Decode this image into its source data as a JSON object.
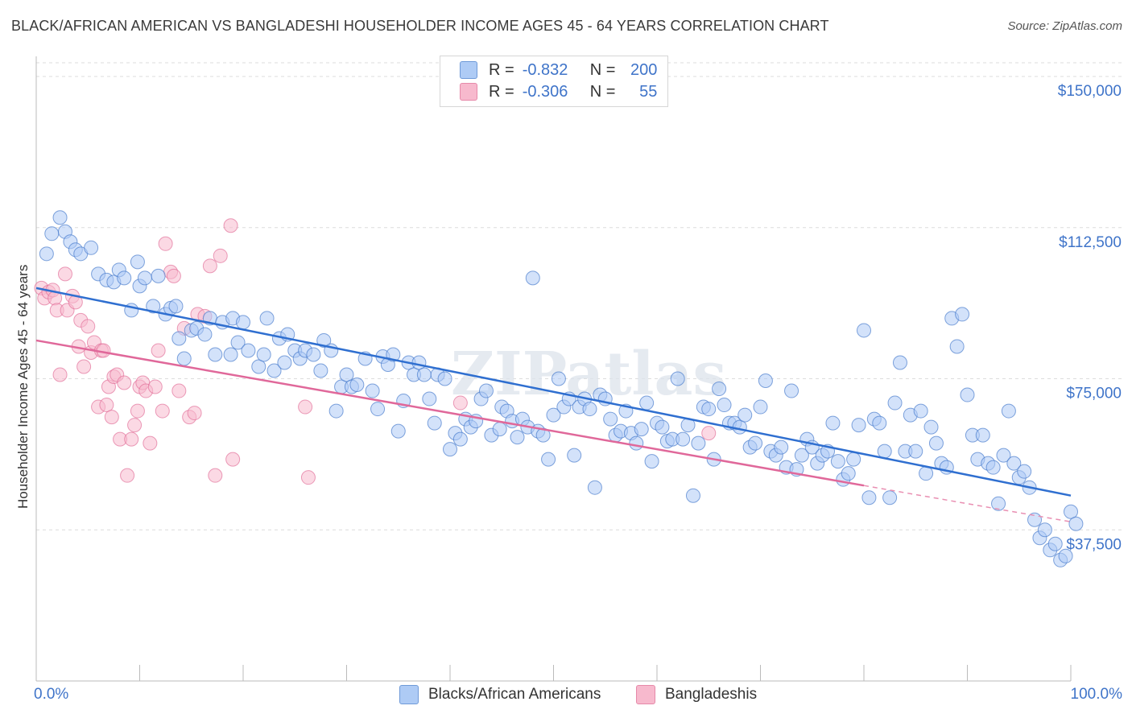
{
  "header": {
    "title": "BLACK/AFRICAN AMERICAN VS BANGLADESHI HOUSEHOLDER INCOME AGES 45 - 64 YEARS CORRELATION CHART",
    "source": "Source: ZipAtlas.com"
  },
  "watermark": "ZIPatlas",
  "legend": {
    "r_label": "R =",
    "n_label": "N =",
    "rows": [
      {
        "r": "-0.832",
        "n": "200",
        "color": "#aecbf5"
      },
      {
        "r": "-0.306",
        "n": "55",
        "color": "#f7b9cd"
      }
    ]
  },
  "bottom_legend": [
    {
      "label": "Blacks/African Americans",
      "color": "#aecbf5"
    },
    {
      "label": "Bangladeshis",
      "color": "#f7b9cd"
    }
  ],
  "chart_data": {
    "type": "scatter",
    "title": "BLACK/AFRICAN AMERICAN VS BANGLADESHI HOUSEHOLDER INCOME AGES 45 - 64 YEARS CORRELATION CHART",
    "xlabel": "",
    "ylabel": "Householder Income Ages 45 - 64 years",
    "xlim": [
      0,
      100
    ],
    "ylim": [
      0,
      155000
    ],
    "x_tick_labels": [
      "0.0%",
      "100.0%"
    ],
    "y_ticks": [
      37500,
      75000,
      112500,
      150000
    ],
    "y_tick_labels": [
      "$37,500",
      "$75,000",
      "$112,500",
      "$150,000"
    ],
    "grid": true,
    "legend_position": "top-center",
    "series": [
      {
        "name": "Blacks/African Americans",
        "color": "#3f74c9",
        "fill": "#aecbf5",
        "trend": {
          "x": [
            0,
            100
          ],
          "y": [
            97500,
            46000
          ],
          "style": "solid"
        },
        "points": [
          [
            1,
            106000
          ],
          [
            1.5,
            111000
          ],
          [
            2.3,
            115000
          ],
          [
            2.8,
            111500
          ],
          [
            3.3,
            109000
          ],
          [
            3.8,
            107000
          ],
          [
            4.3,
            106000
          ],
          [
            5.3,
            107500
          ],
          [
            6,
            101000
          ],
          [
            6.8,
            99500
          ],
          [
            7.5,
            99000
          ],
          [
            8,
            102000
          ],
          [
            8.5,
            100000
          ],
          [
            9.2,
            92000
          ],
          [
            9.8,
            104000
          ],
          [
            10,
            98000
          ],
          [
            10.5,
            100000
          ],
          [
            11.3,
            93000
          ],
          [
            11.8,
            100500
          ],
          [
            12.5,
            91000
          ],
          [
            13,
            92500
          ],
          [
            13.5,
            93000
          ],
          [
            13.8,
            85000
          ],
          [
            14.3,
            80000
          ],
          [
            15,
            87000
          ],
          [
            15.5,
            87500
          ],
          [
            16.3,
            86000
          ],
          [
            16.8,
            90000
          ],
          [
            17.3,
            81000
          ],
          [
            18,
            89000
          ],
          [
            18.8,
            81000
          ],
          [
            19,
            90000
          ],
          [
            19.5,
            84000
          ],
          [
            20,
            89000
          ],
          [
            20.5,
            82000
          ],
          [
            21.5,
            78000
          ],
          [
            22,
            81000
          ],
          [
            22.3,
            90000
          ],
          [
            23,
            77000
          ],
          [
            23.5,
            85000
          ],
          [
            24,
            79000
          ],
          [
            24.3,
            86000
          ],
          [
            25,
            82000
          ],
          [
            25.5,
            80000
          ],
          [
            26,
            82000
          ],
          [
            26.8,
            81000
          ],
          [
            27.5,
            77000
          ],
          [
            27.8,
            84500
          ],
          [
            28.5,
            82000
          ],
          [
            29,
            67000
          ],
          [
            29.5,
            73000
          ],
          [
            30,
            76000
          ],
          [
            30.5,
            73000
          ],
          [
            31,
            73500
          ],
          [
            31.8,
            80000
          ],
          [
            32.5,
            72000
          ],
          [
            33,
            67500
          ],
          [
            33.5,
            80500
          ],
          [
            34,
            78500
          ],
          [
            34.5,
            81000
          ],
          [
            35,
            62000
          ],
          [
            35.5,
            69500
          ],
          [
            36,
            79000
          ],
          [
            36.5,
            76000
          ],
          [
            37,
            79000
          ],
          [
            37.5,
            76000
          ],
          [
            38,
            70000
          ],
          [
            38.5,
            64000
          ],
          [
            38.8,
            76000
          ],
          [
            39.5,
            75000
          ],
          [
            40,
            57500
          ],
          [
            40.5,
            61500
          ],
          [
            41,
            60000
          ],
          [
            41.5,
            65000
          ],
          [
            42,
            63000
          ],
          [
            42.5,
            64500
          ],
          [
            43,
            70000
          ],
          [
            43.5,
            72000
          ],
          [
            44,
            61000
          ],
          [
            44.8,
            62500
          ],
          [
            45,
            68000
          ],
          [
            45.5,
            67000
          ],
          [
            46,
            64500
          ],
          [
            46.5,
            60500
          ],
          [
            47,
            65000
          ],
          [
            47.5,
            63000
          ],
          [
            48,
            100000
          ],
          [
            48.5,
            62000
          ],
          [
            49,
            61000
          ],
          [
            49.5,
            55000
          ],
          [
            50,
            66000
          ],
          [
            50.5,
            75000
          ],
          [
            51,
            68000
          ],
          [
            51.5,
            70000
          ],
          [
            52,
            56000
          ],
          [
            52.5,
            68000
          ],
          [
            53,
            70000
          ],
          [
            53.5,
            67500
          ],
          [
            54,
            48000
          ],
          [
            54.5,
            71000
          ],
          [
            55,
            70000
          ],
          [
            55.5,
            65000
          ],
          [
            56,
            61000
          ],
          [
            56.5,
            62000
          ],
          [
            57,
            67000
          ],
          [
            57.5,
            61500
          ],
          [
            58,
            59000
          ],
          [
            58.5,
            62500
          ],
          [
            59,
            69000
          ],
          [
            59.5,
            54500
          ],
          [
            60,
            64000
          ],
          [
            60.5,
            63000
          ],
          [
            61,
            59500
          ],
          [
            61.5,
            60000
          ],
          [
            62,
            75000
          ],
          [
            62.5,
            60000
          ],
          [
            63,
            63500
          ],
          [
            63.5,
            46000
          ],
          [
            64,
            59000
          ],
          [
            64.5,
            68000
          ],
          [
            65,
            67500
          ],
          [
            65.5,
            55000
          ],
          [
            66,
            72500
          ],
          [
            66.5,
            68500
          ],
          [
            67,
            64000
          ],
          [
            67.5,
            64000
          ],
          [
            68,
            63000
          ],
          [
            68.5,
            66000
          ],
          [
            69,
            58000
          ],
          [
            69.5,
            59000
          ],
          [
            70,
            68000
          ],
          [
            70.5,
            74500
          ],
          [
            71,
            57000
          ],
          [
            71.5,
            56000
          ],
          [
            72,
            58000
          ],
          [
            72.5,
            53000
          ],
          [
            73,
            72000
          ],
          [
            73.5,
            52500
          ],
          [
            74,
            56000
          ],
          [
            74.5,
            60000
          ],
          [
            75,
            58000
          ],
          [
            75.5,
            54000
          ],
          [
            76,
            56000
          ],
          [
            76.5,
            57000
          ],
          [
            77,
            64000
          ],
          [
            77.5,
            54500
          ],
          [
            78,
            50000
          ],
          [
            78.5,
            51500
          ],
          [
            79,
            55000
          ],
          [
            79.5,
            63500
          ],
          [
            80,
            87000
          ],
          [
            80.5,
            45500
          ],
          [
            81,
            65000
          ],
          [
            81.5,
            64000
          ],
          [
            82,
            57000
          ],
          [
            82.5,
            45500
          ],
          [
            83,
            69000
          ],
          [
            83.5,
            79000
          ],
          [
            84,
            57000
          ],
          [
            84.5,
            66000
          ],
          [
            85,
            57000
          ],
          [
            85.5,
            67000
          ],
          [
            86,
            51500
          ],
          [
            86.5,
            63000
          ],
          [
            87,
            59000
          ],
          [
            87.5,
            54000
          ],
          [
            88,
            53000
          ],
          [
            88.5,
            90000
          ],
          [
            89,
            83000
          ],
          [
            89.5,
            91000
          ],
          [
            90,
            71000
          ],
          [
            90.5,
            61000
          ],
          [
            91,
            55000
          ],
          [
            91.5,
            61000
          ],
          [
            92,
            54000
          ],
          [
            92.5,
            53000
          ],
          [
            93,
            44000
          ],
          [
            93.5,
            56000
          ],
          [
            94,
            67000
          ],
          [
            94.5,
            54000
          ],
          [
            95,
            50500
          ],
          [
            95.5,
            52000
          ],
          [
            96,
            48000
          ],
          [
            96.5,
            40000
          ],
          [
            97,
            35500
          ],
          [
            97.5,
            37500
          ],
          [
            98,
            32500
          ],
          [
            98.5,
            34000
          ],
          [
            99,
            30000
          ],
          [
            99.5,
            31000
          ],
          [
            100,
            42000
          ],
          [
            100.5,
            39000
          ]
        ]
      },
      {
        "name": "Bangladeshis",
        "color": "#e06a95",
        "fill": "#f7b9cd",
        "trend": {
          "x": [
            0,
            80
          ],
          "y": [
            84500,
            48500
          ],
          "style": "solid",
          "extension": {
            "x": [
              80,
              100
            ],
            "y": [
              48500,
              39500
            ],
            "style": "dashed"
          }
        },
        "points": [
          [
            0.5,
            97500
          ],
          [
            0.8,
            95000
          ],
          [
            1.2,
            96500
          ],
          [
            1.6,
            97000
          ],
          [
            1.8,
            95000
          ],
          [
            2,
            92000
          ],
          [
            2.3,
            76000
          ],
          [
            2.8,
            101000
          ],
          [
            3,
            92000
          ],
          [
            3.5,
            95500
          ],
          [
            3.8,
            94000
          ],
          [
            4.1,
            83000
          ],
          [
            4.3,
            89500
          ],
          [
            4.6,
            78000
          ],
          [
            5,
            88000
          ],
          [
            5.3,
            81500
          ],
          [
            5.6,
            84000
          ],
          [
            6,
            68000
          ],
          [
            6.3,
            82000
          ],
          [
            6.5,
            82000
          ],
          [
            6.8,
            68500
          ],
          [
            7,
            73000
          ],
          [
            7.3,
            65500
          ],
          [
            7.5,
            75500
          ],
          [
            7.8,
            76000
          ],
          [
            8.1,
            60000
          ],
          [
            8.5,
            74000
          ],
          [
            8.8,
            51000
          ],
          [
            9.2,
            60000
          ],
          [
            9.5,
            63500
          ],
          [
            9.8,
            67000
          ],
          [
            10,
            73000
          ],
          [
            10.3,
            74000
          ],
          [
            10.6,
            72000
          ],
          [
            11,
            59000
          ],
          [
            11.5,
            73000
          ],
          [
            11.8,
            82000
          ],
          [
            12.2,
            67000
          ],
          [
            12.5,
            108500
          ],
          [
            13,
            101500
          ],
          [
            13.3,
            100500
          ],
          [
            13.8,
            72000
          ],
          [
            14.3,
            87500
          ],
          [
            14.8,
            65500
          ],
          [
            15.3,
            66500
          ],
          [
            15.6,
            91000
          ],
          [
            16.3,
            90500
          ],
          [
            16.8,
            103000
          ],
          [
            17.3,
            51000
          ],
          [
            17.8,
            105500
          ],
          [
            18.8,
            113000
          ],
          [
            19,
            55000
          ],
          [
            26,
            68000
          ],
          [
            26.3,
            50500
          ],
          [
            41,
            69000
          ],
          [
            65,
            61500
          ]
        ]
      }
    ]
  }
}
